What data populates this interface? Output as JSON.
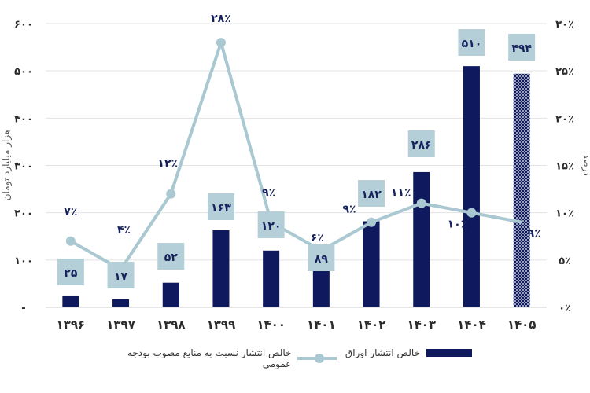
{
  "chart_data": {
    "type": "bar+line",
    "categories": [
      "۱۳۹۶",
      "۱۳۹۷",
      "۱۳۹۸",
      "۱۳۹۹",
      "۱۴۰۰",
      "۱۴۰۱",
      "۱۴۰۲",
      "۱۴۰۳",
      "۱۴۰۴",
      "۱۴۰۵"
    ],
    "y_left": {
      "title": "هزار میلیارد تومان",
      "ylim": [
        0,
        600
      ],
      "tick_labels": [
        "-",
        "۱۰۰",
        "۲۰۰",
        "۳۰۰",
        "۴۰۰",
        "۵۰۰",
        "۶۰۰"
      ]
    },
    "y_right": {
      "title": "درصد",
      "ylim": [
        0,
        30
      ],
      "tick_labels": [
        "۰٪",
        "۵٪",
        "۱۰٪",
        "۱۵٪",
        "۲۰٪",
        "۲۵٪",
        "۳۰٪"
      ]
    },
    "series": [
      {
        "name": "خالص انتشار اوراق",
        "kind": "bar",
        "axis": "left",
        "color": "#0f1a5e",
        "values": [
          25,
          17,
          52,
          163,
          120,
          89,
          182,
          286,
          510,
          494
        ],
        "labels": [
          "۲۵",
          "۱۷",
          "۵۲",
          "۱۶۳",
          "۱۲۰",
          "۸۹",
          "۱۸۲",
          "۲۸۶",
          "۵۱۰",
          "۴۹۴"
        ],
        "forecast_pattern_index": 9
      },
      {
        "name": "خالص انتشار نسبت به منابع مصوب بودجه عمومی",
        "kind": "line",
        "axis": "right",
        "color": "#a9c8d1",
        "values": [
          7,
          4,
          12,
          28,
          9,
          6,
          9,
          11,
          10,
          9
        ],
        "labels": [
          "۷٪",
          "۴٪",
          "۱۲٪",
          "۲۸٪",
          "۹٪",
          "۶٪",
          "۹٪",
          "۱۱٪",
          "۱۰٪",
          "۹٪"
        ]
      }
    ],
    "grid": true,
    "legend_position": "bottom"
  }
}
